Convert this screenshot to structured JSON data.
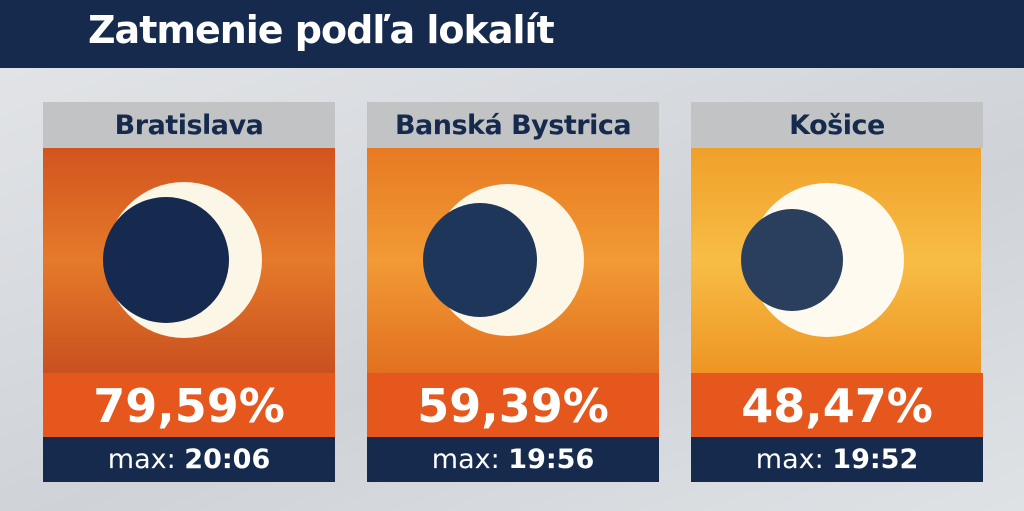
{
  "header": {
    "title": "Zatmenie podľa lokalít"
  },
  "cards": [
    {
      "city": "Bratislava",
      "percent": "79,59%",
      "max_label": "max:",
      "max_time": "20:06"
    },
    {
      "city": "Banská Bystrica",
      "percent": "59,39%",
      "max_label": "max:",
      "max_time": "19:56"
    },
    {
      "city": "Košice",
      "percent": "48,47%",
      "max_label": "max:",
      "max_time": "19:52"
    }
  ]
}
